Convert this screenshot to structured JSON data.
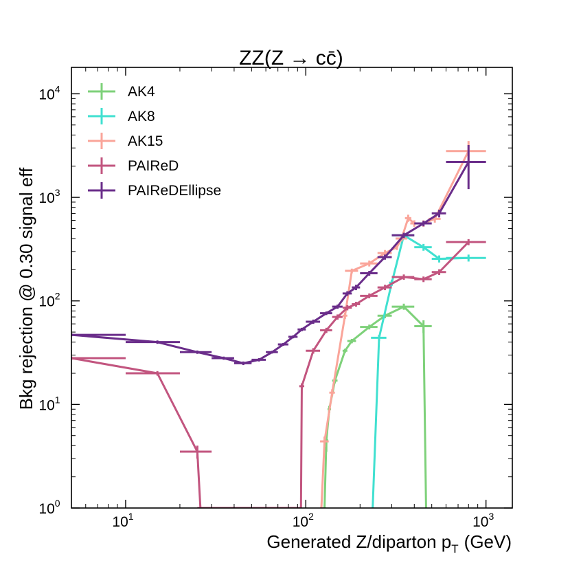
{
  "chart_data": {
    "type": "line",
    "title": "ZZ(Z → cc̄)",
    "xlabel": "Generated Z/diparton p",
    "xlabel_sub": "T",
    "xlabel_unit": "(GeV)",
    "ylabel": "Bkg rejection @ 0.30 signal eff",
    "xscale": "log",
    "yscale": "log",
    "xlim": [
      5,
      1400
    ],
    "ylim": [
      1,
      18000
    ],
    "x_ticks": [
      {
        "value": 10,
        "base": "10",
        "exp": "1"
      },
      {
        "value": 100,
        "base": "10",
        "exp": "2"
      },
      {
        "value": 1000,
        "base": "10",
        "exp": "3"
      }
    ],
    "y_ticks": [
      {
        "value": 1,
        "base": "10",
        "exp": "0"
      },
      {
        "value": 10,
        "base": "10",
        "exp": "1"
      },
      {
        "value": 100,
        "base": "10",
        "exp": "2"
      },
      {
        "value": 1000,
        "base": "10",
        "exp": "3"
      },
      {
        "value": 10000,
        "base": "10",
        "exp": "4"
      }
    ],
    "legend_position": "top-left",
    "series": [
      {
        "name": "AK4",
        "color": "#7ed17a",
        "points": [
          {
            "x": 127,
            "y": 1,
            "xerr": [
              2,
              2
            ],
            "yerr": [
              0,
              0
            ]
          },
          {
            "x": 130,
            "y": 4.5,
            "xerr": [
              3,
              3
            ],
            "yerr": [
              1,
              1
            ]
          },
          {
            "x": 135,
            "y": 9,
            "xerr": [
              3,
              3
            ],
            "yerr": [
              0.7,
              0.7
            ]
          },
          {
            "x": 145,
            "y": 17,
            "xerr": [
              5,
              5
            ],
            "yerr": [
              1,
              1
            ]
          },
          {
            "x": 165,
            "y": 33,
            "xerr": [
              5,
              5
            ],
            "yerr": [
              1.5,
              1.5
            ]
          },
          {
            "x": 180,
            "y": 41,
            "xerr": [
              10,
              10
            ],
            "yerr": [
              2,
              2
            ]
          },
          {
            "x": 225,
            "y": 56,
            "xerr": [
              25,
              25
            ],
            "yerr": [
              3,
              3
            ]
          },
          {
            "x": 275,
            "y": 72,
            "xerr": [
              25,
              25
            ],
            "yerr": [
              4,
              4
            ]
          },
          {
            "x": 350,
            "y": 88,
            "xerr": [
              50,
              50
            ],
            "yerr": [
              6,
              6
            ]
          },
          {
            "x": 450,
            "y": 57,
            "xerr": [
              50,
              50
            ],
            "yerr": [
              8,
              8
            ]
          },
          {
            "x": 465,
            "y": 1,
            "xerr": [
              3,
              3
            ],
            "yerr": [
              0,
              0
            ]
          }
        ]
      },
      {
        "name": "AK8",
        "color": "#40e0d0",
        "points": [
          {
            "x": 235,
            "y": 1,
            "xerr": [
              3,
              3
            ],
            "yerr": [
              0,
              0
            ]
          },
          {
            "x": 255,
            "y": 44,
            "xerr": [
              25,
              25
            ],
            "yerr": [
              3,
              3
            ]
          },
          {
            "x": 300,
            "y": 150,
            "xerr": [
              10,
              10
            ],
            "yerr": [
              10,
              10
            ]
          },
          {
            "x": 350,
            "y": 430,
            "xerr": [
              50,
              50
            ],
            "yerr": [
              30,
              30
            ]
          },
          {
            "x": 450,
            "y": 330,
            "xerr": [
              50,
              50
            ],
            "yerr": [
              25,
              25
            ]
          },
          {
            "x": 550,
            "y": 255,
            "xerr": [
              50,
              50
            ],
            "yerr": [
              20,
              20
            ]
          },
          {
            "x": 800,
            "y": 260,
            "xerr": [
              200,
              200
            ],
            "yerr": [
              20,
              20
            ]
          }
        ]
      },
      {
        "name": "AK15",
        "color": "#faa59a",
        "points": [
          {
            "x": 122,
            "y": 1,
            "xerr": [
              2,
              2
            ],
            "yerr": [
              0,
              0
            ]
          },
          {
            "x": 127,
            "y": 4.4,
            "xerr": [
              7,
              7
            ],
            "yerr": [
              0.5,
              0.5
            ]
          },
          {
            "x": 140,
            "y": 13,
            "xerr": [
              5,
              5
            ],
            "yerr": [
              1,
              1
            ]
          },
          {
            "x": 165,
            "y": 72,
            "xerr": [
              5,
              5
            ],
            "yerr": [
              5,
              5
            ]
          },
          {
            "x": 180,
            "y": 195,
            "xerr": [
              15,
              15
            ],
            "yerr": [
              10,
              10
            ]
          },
          {
            "x": 225,
            "y": 230,
            "xerr": [
              25,
              25
            ],
            "yerr": [
              15,
              15
            ]
          },
          {
            "x": 275,
            "y": 290,
            "xerr": [
              25,
              25
            ],
            "yerr": [
              20,
              20
            ]
          },
          {
            "x": 320,
            "y": 330,
            "xerr": [
              5,
              5
            ],
            "yerr": [
              20,
              20
            ]
          },
          {
            "x": 340,
            "y": 400,
            "xerr": [
              25,
              25
            ],
            "yerr": [
              25,
              25
            ]
          },
          {
            "x": 370,
            "y": 630,
            "xerr": [
              15,
              15
            ],
            "yerr": [
              50,
              50
            ]
          },
          {
            "x": 400,
            "y": 560,
            "xerr": [
              20,
              20
            ],
            "yerr": [
              40,
              40
            ]
          },
          {
            "x": 450,
            "y": 560,
            "xerr": [
              30,
              30
            ],
            "yerr": [
              40,
              40
            ]
          },
          {
            "x": 520,
            "y": 620,
            "xerr": [
              40,
              40
            ],
            "yerr": [
              50,
              50
            ]
          },
          {
            "x": 800,
            "y": 2800,
            "xerr": [
              200,
              200
            ],
            "yerr": [
              700,
              700
            ]
          }
        ]
      },
      {
        "name": "PAIReD",
        "color": "#c2557f",
        "points": [
          {
            "x": 5,
            "y": 28,
            "xerr": [
              0,
              5
            ],
            "yerr": [
              1,
              1
            ]
          },
          {
            "x": 15,
            "y": 20,
            "xerr": [
              5,
              5
            ],
            "yerr": [
              1,
              1
            ]
          },
          {
            "x": 25,
            "y": 3.5,
            "xerr": [
              5,
              5
            ],
            "yerr": [
              0.5,
              0.5
            ]
          },
          {
            "x": 26,
            "y": 1,
            "xerr": [
              1,
              1
            ],
            "yerr": [
              0,
              0
            ]
          },
          {
            "x": 94,
            "y": 1,
            "xerr": [
              1,
              1
            ],
            "yerr": [
              0,
              0
            ]
          },
          {
            "x": 95,
            "y": 15,
            "xerr": [
              3,
              3
            ],
            "yerr": [
              1,
              1
            ]
          },
          {
            "x": 110,
            "y": 33,
            "xerr": [
              10,
              10
            ],
            "yerr": [
              2,
              2
            ]
          },
          {
            "x": 130,
            "y": 52,
            "xerr": [
              10,
              10
            ],
            "yerr": [
              3,
              3
            ]
          },
          {
            "x": 150,
            "y": 70,
            "xerr": [
              10,
              10
            ],
            "yerr": [
              4,
              4
            ]
          },
          {
            "x": 170,
            "y": 86,
            "xerr": [
              10,
              10
            ],
            "yerr": [
              5,
              5
            ]
          },
          {
            "x": 190,
            "y": 93,
            "xerr": [
              10,
              10
            ],
            "yerr": [
              5,
              5
            ]
          },
          {
            "x": 225,
            "y": 112,
            "xerr": [
              25,
              25
            ],
            "yerr": [
              6,
              6
            ]
          },
          {
            "x": 275,
            "y": 135,
            "xerr": [
              25,
              25
            ],
            "yerr": [
              8,
              8
            ]
          },
          {
            "x": 350,
            "y": 170,
            "xerr": [
              50,
              50
            ],
            "yerr": [
              10,
              10
            ]
          },
          {
            "x": 450,
            "y": 162,
            "xerr": [
              50,
              50
            ],
            "yerr": [
              10,
              10
            ]
          },
          {
            "x": 550,
            "y": 190,
            "xerr": [
              50,
              50
            ],
            "yerr": [
              12,
              12
            ]
          },
          {
            "x": 800,
            "y": 370,
            "xerr": [
              200,
              200
            ],
            "yerr": [
              25,
              25
            ]
          }
        ]
      },
      {
        "name": "PAIReDEllipse",
        "color": "#6a2d8a",
        "points": [
          {
            "x": 5,
            "y": 47,
            "xerr": [
              0,
              5
            ],
            "yerr": [
              1.5,
              1.5
            ]
          },
          {
            "x": 15,
            "y": 40,
            "xerr": [
              5,
              5
            ],
            "yerr": [
              1.5,
              1.5
            ]
          },
          {
            "x": 25,
            "y": 32,
            "xerr": [
              5,
              5
            ],
            "yerr": [
              1.2,
              1.2
            ]
          },
          {
            "x": 35,
            "y": 28,
            "xerr": [
              5,
              5
            ],
            "yerr": [
              1,
              1
            ]
          },
          {
            "x": 45,
            "y": 25,
            "xerr": [
              5,
              5
            ],
            "yerr": [
              1,
              1
            ]
          },
          {
            "x": 55,
            "y": 27,
            "xerr": [
              5,
              5
            ],
            "yerr": [
              1,
              1
            ]
          },
          {
            "x": 65,
            "y": 32,
            "xerr": [
              5,
              5
            ],
            "yerr": [
              1,
              1
            ]
          },
          {
            "x": 75,
            "y": 38,
            "xerr": [
              5,
              5
            ],
            "yerr": [
              1.2,
              1.2
            ]
          },
          {
            "x": 85,
            "y": 45,
            "xerr": [
              5,
              5
            ],
            "yerr": [
              1.5,
              1.5
            ]
          },
          {
            "x": 95,
            "y": 53,
            "xerr": [
              5,
              5
            ],
            "yerr": [
              2,
              2
            ]
          },
          {
            "x": 110,
            "y": 63,
            "xerr": [
              10,
              10
            ],
            "yerr": [
              3,
              3
            ]
          },
          {
            "x": 130,
            "y": 76,
            "xerr": [
              10,
              10
            ],
            "yerr": [
              3,
              3
            ]
          },
          {
            "x": 150,
            "y": 88,
            "xerr": [
              10,
              10
            ],
            "yerr": [
              4,
              4
            ]
          },
          {
            "x": 170,
            "y": 118,
            "xerr": [
              10,
              10
            ],
            "yerr": [
              6,
              6
            ]
          },
          {
            "x": 190,
            "y": 135,
            "xerr": [
              10,
              10
            ],
            "yerr": [
              8,
              8
            ]
          },
          {
            "x": 225,
            "y": 185,
            "xerr": [
              25,
              25
            ],
            "yerr": [
              10,
              10
            ]
          },
          {
            "x": 275,
            "y": 265,
            "xerr": [
              25,
              25
            ],
            "yerr": [
              15,
              15
            ]
          },
          {
            "x": 350,
            "y": 430,
            "xerr": [
              50,
              50
            ],
            "yerr": [
              25,
              25
            ]
          },
          {
            "x": 450,
            "y": 560,
            "xerr": [
              50,
              50
            ],
            "yerr": [
              35,
              35
            ]
          },
          {
            "x": 550,
            "y": 700,
            "xerr": [
              50,
              50
            ],
            "yerr": [
              60,
              60
            ]
          },
          {
            "x": 800,
            "y": 2200,
            "xerr": [
              200,
              200
            ],
            "yerr": [
              1000,
              1000
            ]
          }
        ]
      }
    ]
  }
}
